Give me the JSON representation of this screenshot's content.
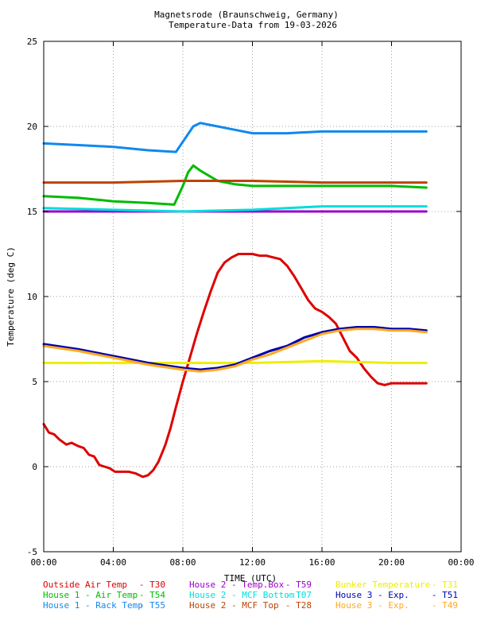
{
  "chart_data": {
    "type": "line",
    "title": "Magnetsrode (Braunschweig, Germany)",
    "subtitle": "Temperature-Data from 19-03-2026",
    "xlabel": "TIME (UTC)",
    "ylabel": "Temperature (deg C)",
    "xlim": [
      0,
      24
    ],
    "ylim": [
      -5,
      25
    ],
    "x_ticks": [
      {
        "value": 0,
        "label": "00:00"
      },
      {
        "value": 4,
        "label": "04:00"
      },
      {
        "value": 8,
        "label": "08:00"
      },
      {
        "value": 12,
        "label": "12:00"
      },
      {
        "value": 16,
        "label": "16:00"
      },
      {
        "value": 20,
        "label": "20:00"
      },
      {
        "value": 24,
        "label": "00:00"
      }
    ],
    "y_ticks": [
      {
        "value": -5,
        "label": "-5"
      },
      {
        "value": 0,
        "label": "0"
      },
      {
        "value": 5,
        "label": "5"
      },
      {
        "value": 10,
        "label": "10"
      },
      {
        "value": 15,
        "label": "15"
      },
      {
        "value": 20,
        "label": "20"
      },
      {
        "value": 25,
        "label": "25"
      }
    ],
    "grid": true,
    "legend_position": "bottom",
    "series": [
      {
        "name": "Outside Air Temp",
        "tag": "T30",
        "color": "#dd0000",
        "x": [
          0,
          0.3,
          0.6,
          0.9,
          1.3,
          1.6,
          2.0,
          2.3,
          2.6,
          2.9,
          3.2,
          3.5,
          3.8,
          4.1,
          4.5,
          4.9,
          5.3,
          5.7,
          6.0,
          6.3,
          6.6,
          6.8,
          7.0,
          7.3,
          7.6,
          8.0,
          8.4,
          8.8,
          9.2,
          9.6,
          10.0,
          10.4,
          10.8,
          11.2,
          11.6,
          12.0,
          12.4,
          12.8,
          13.2,
          13.6,
          14.0,
          14.4,
          14.8,
          15.2,
          15.6,
          16.0,
          16.4,
          16.8,
          17.2,
          17.6,
          18.0,
          18.4,
          18.8,
          19.2,
          19.6,
          20.0,
          20.4,
          20.8,
          21.2,
          21.6,
          22.0
        ],
        "y": [
          2.5,
          2.0,
          1.9,
          1.6,
          1.3,
          1.4,
          1.2,
          1.1,
          0.7,
          0.6,
          0.1,
          0.0,
          -0.1,
          -0.3,
          -0.3,
          -0.3,
          -0.4,
          -0.6,
          -0.5,
          -0.2,
          0.3,
          0.8,
          1.3,
          2.3,
          3.5,
          5.0,
          6.4,
          7.8,
          9.1,
          10.3,
          11.4,
          12.0,
          12.3,
          12.5,
          12.5,
          12.5,
          12.4,
          12.4,
          12.3,
          12.2,
          11.8,
          11.2,
          10.5,
          9.8,
          9.3,
          9.1,
          8.8,
          8.4,
          7.6,
          6.8,
          6.4,
          5.8,
          5.3,
          4.9,
          4.8,
          4.9,
          4.9,
          4.9,
          4.9,
          4.9,
          4.9
        ]
      },
      {
        "name": "House 1 - Air  Temp",
        "tag": "T54",
        "color": "#00bb00",
        "x": [
          0,
          2,
          4,
          6,
          7.5,
          8.0,
          8.3,
          8.6,
          9.0,
          9.5,
          10,
          11,
          12,
          14,
          16,
          18,
          20,
          22
        ],
        "y": [
          15.9,
          15.8,
          15.6,
          15.5,
          15.4,
          16.5,
          17.3,
          17.7,
          17.4,
          17.1,
          16.8,
          16.6,
          16.5,
          16.5,
          16.5,
          16.5,
          16.5,
          16.4
        ],
        "show": [
          0,
          0,
          0,
          0,
          1,
          1,
          1,
          1,
          1,
          1,
          1,
          1,
          1,
          1,
          1,
          1,
          1,
          1
        ]
      },
      {
        "name": "House 1 - Rack Temp",
        "tag": "T55",
        "color": "#1188ee",
        "x": [
          0,
          2,
          4,
          6,
          7.6,
          8.2,
          8.6,
          9.0,
          9.5,
          10,
          11,
          12,
          14,
          16,
          18,
          20,
          22
        ],
        "y": [
          19.0,
          18.9,
          18.8,
          18.6,
          18.5,
          19.4,
          20.0,
          20.2,
          20.1,
          20.0,
          19.8,
          19.6,
          19.6,
          19.7,
          19.7,
          19.7,
          19.7
        ]
      },
      {
        "name": "House 2 - Temp.Box",
        "tag": "T59",
        "color": "#9900cc",
        "x": [
          0,
          4,
          8,
          12,
          16,
          20,
          22
        ],
        "y": [
          15.0,
          15.0,
          15.0,
          15.0,
          15.0,
          15.0,
          15.0
        ]
      },
      {
        "name": "House 2 - MCF Bottom",
        "tag": "T07",
        "color": "#00dddd",
        "x": [
          0,
          4,
          8,
          10,
          12,
          14,
          16,
          18,
          20,
          22
        ],
        "y": [
          15.2,
          15.1,
          15.0,
          15.05,
          15.1,
          15.2,
          15.3,
          15.3,
          15.3,
          15.3
        ]
      },
      {
        "name": "House 2 - MCF Top",
        "tag": "T28",
        "color": "#bb4400",
        "x": [
          0,
          4,
          8,
          12,
          16,
          20,
          22
        ],
        "y": [
          16.7,
          16.7,
          16.8,
          16.8,
          16.7,
          16.7,
          16.7
        ]
      },
      {
        "name": "Bunker Temperature",
        "tag": "T31",
        "color": "#eeee00",
        "x": [
          0,
          4,
          8,
          12,
          16,
          20,
          22
        ],
        "y": [
          6.1,
          6.1,
          6.1,
          6.1,
          6.2,
          6.1,
          6.1
        ]
      },
      {
        "name": "House 3 - Exp.",
        "tag": "T51",
        "color": "#0000aa",
        "x": [
          0,
          2,
          4,
          6,
          8,
          9,
          10,
          11,
          12,
          13,
          14,
          15,
          16,
          17,
          18,
          19,
          20,
          21,
          22
        ],
        "y": [
          7.2,
          6.9,
          6.5,
          6.1,
          5.8,
          5.7,
          5.8,
          6.0,
          6.4,
          6.8,
          7.1,
          7.6,
          7.9,
          8.1,
          8.2,
          8.2,
          8.1,
          8.1,
          8.0
        ]
      },
      {
        "name": "House 3 - Exp.",
        "tag": "T49",
        "color": "#ffaa22",
        "x": [
          0,
          2,
          4,
          6,
          8,
          9,
          10,
          11,
          12,
          13,
          14,
          15,
          16,
          17,
          18,
          19,
          20,
          21,
          22
        ],
        "y": [
          7.1,
          6.8,
          6.4,
          6.0,
          5.7,
          5.6,
          5.7,
          5.9,
          6.3,
          6.6,
          7.0,
          7.4,
          7.8,
          8.0,
          8.1,
          8.1,
          8.0,
          8.0,
          7.9
        ]
      }
    ]
  }
}
